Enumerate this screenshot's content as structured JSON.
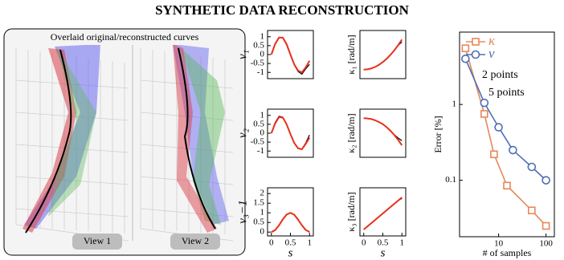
{
  "title": "SYNTHETIC DATA RECONSTRUCTION",
  "render": {
    "caption": "Overlaid original/reconstructed curves",
    "views": [
      "View 1",
      "View 2"
    ]
  },
  "chart_data": [
    {
      "type": "line",
      "ylabel": "ν₁",
      "x": [
        0,
        0.1,
        0.2,
        0.3,
        0.4,
        0.5,
        0.6,
        0.7,
        0.8,
        0.9,
        1
      ],
      "xlim": [
        -0.1,
        1.1
      ],
      "ylim": [
        -1.35,
        1.35
      ],
      "yticks": [
        -1,
        -0.5,
        0,
        0.5,
        1
      ],
      "series": [
        {
          "color": "#000000",
          "values": [
            0,
            0.62,
            0.97,
            0.93,
            0.55,
            -0.02,
            -0.58,
            -0.95,
            -1.1,
            -0.8,
            -0.55
          ]
        },
        {
          "color": "#e8301c",
          "values": [
            0,
            0.6,
            0.95,
            0.95,
            0.58,
            0,
            -0.55,
            -0.9,
            -1,
            -0.72,
            -0.35
          ]
        }
      ]
    },
    {
      "type": "line",
      "ylabel": "κ₁ [rad/m]",
      "x": [
        0,
        0.1,
        0.2,
        0.3,
        0.4,
        0.5,
        0.6,
        0.7,
        0.8,
        0.9,
        1
      ],
      "xlim": [
        -0.1,
        1.1
      ],
      "ylim": [
        -0.3,
        1.3
      ],
      "series": [
        {
          "color": "#000000",
          "values": [
            0,
            0.01,
            0.04,
            0.09,
            0.16,
            0.25,
            0.36,
            0.49,
            0.64,
            0.8,
            0.92
          ]
        },
        {
          "color": "#e8301c",
          "values": [
            0,
            0.01,
            0.04,
            0.09,
            0.16,
            0.25,
            0.36,
            0.49,
            0.64,
            0.81,
            1
          ]
        }
      ]
    },
    {
      "type": "line",
      "ylabel": "ν₂",
      "x": [
        0,
        0.1,
        0.2,
        0.3,
        0.4,
        0.5,
        0.6,
        0.7,
        0.8,
        0.9,
        1
      ],
      "xlim": [
        -0.1,
        1.1
      ],
      "ylim": [
        -1.35,
        1.35
      ],
      "yticks": [
        -1,
        -0.5,
        0,
        0.5,
        1
      ],
      "series": [
        {
          "color": "#000000",
          "values": [
            0,
            0.6,
            0.95,
            0.9,
            0.5,
            -0.05,
            -0.55,
            -0.85,
            -0.9,
            -0.55,
            -0.1
          ]
        },
        {
          "color": "#e8301c",
          "values": [
            0,
            0.55,
            0.9,
            0.88,
            0.5,
            -0.05,
            -0.55,
            -0.85,
            -0.9,
            -0.6,
            -0.25
          ]
        }
      ]
    },
    {
      "type": "line",
      "ylabel": "κ₂ [rad/m]",
      "x": [
        0,
        0.1,
        0.2,
        0.3,
        0.4,
        0.5,
        0.6,
        0.7,
        0.8,
        0.9,
        1
      ],
      "xlim": [
        -0.1,
        1.1
      ],
      "ylim": [
        -1.3,
        0.3
      ],
      "series": [
        {
          "color": "#000000",
          "values": [
            0,
            -0.01,
            -0.03,
            -0.07,
            -0.13,
            -0.2,
            -0.3,
            -0.42,
            -0.55,
            -0.66,
            -0.75
          ]
        },
        {
          "color": "#e8301c",
          "values": [
            0,
            -0.01,
            -0.03,
            -0.07,
            -0.13,
            -0.2,
            -0.3,
            -0.42,
            -0.56,
            -0.72,
            -0.9
          ]
        }
      ]
    },
    {
      "type": "line",
      "ylabel": "ν₃−1",
      "xlabel": "s",
      "x": [
        0,
        0.1,
        0.2,
        0.3,
        0.4,
        0.5,
        0.6,
        0.7,
        0.8,
        0.9,
        1
      ],
      "xlim": [
        -0.1,
        1.1
      ],
      "xticks": [
        0,
        0.5,
        1
      ],
      "ylim": [
        -0.2,
        2.3
      ],
      "yticks": [
        0,
        0.5,
        1,
        1.5,
        2
      ],
      "series": [
        {
          "color": "#000000",
          "values": [
            0,
            0.1,
            0.35,
            0.65,
            0.9,
            1,
            0.9,
            0.65,
            0.35,
            0.1,
            0
          ]
        },
        {
          "color": "#e8301c",
          "values": [
            0,
            0.1,
            0.35,
            0.66,
            0.91,
            1,
            0.9,
            0.65,
            0.35,
            0.11,
            0.01
          ]
        }
      ]
    },
    {
      "type": "line",
      "ylabel": "κ₃ [rad/m]",
      "xlabel": "s",
      "x": [
        0,
        0.1,
        0.2,
        0.3,
        0.4,
        0.5,
        0.6,
        0.7,
        0.8,
        0.9,
        1
      ],
      "xlim": [
        -0.1,
        1.1
      ],
      "xticks": [
        0,
        0.5,
        1
      ],
      "ylim": [
        -0.2,
        1.3
      ],
      "series": [
        {
          "color": "#000000",
          "values": [
            0,
            0.1,
            0.2,
            0.3,
            0.4,
            0.5,
            0.6,
            0.7,
            0.8,
            0.9,
            0.97
          ]
        },
        {
          "color": "#e8301c",
          "values": [
            0,
            0.1,
            0.2,
            0.3,
            0.4,
            0.5,
            0.6,
            0.7,
            0.8,
            0.9,
            1
          ]
        }
      ]
    },
    {
      "type": "loglog",
      "xlabel": "# of samples",
      "ylabel": "Error [%]",
      "xlim": [
        1.5,
        150
      ],
      "ylim": [
        0.018,
        9
      ],
      "xticks": [
        10,
        100
      ],
      "yticks": [
        0.1,
        1
      ],
      "annotations": [
        "2 points",
        "5 points"
      ],
      "series": [
        {
          "name": "κ",
          "color": "#e8875a",
          "marker": "square",
          "x": [
            2,
            5,
            8,
            15,
            50,
            100
          ],
          "values": [
            5.5,
            0.75,
            0.22,
            0.085,
            0.04,
            0.025
          ]
        },
        {
          "name": "ν",
          "color": "#4f6fb5",
          "marker": "circle",
          "x": [
            2,
            5,
            10,
            20,
            50,
            100
          ],
          "values": [
            4,
            1.05,
            0.5,
            0.25,
            0.15,
            0.1
          ]
        }
      ]
    }
  ]
}
